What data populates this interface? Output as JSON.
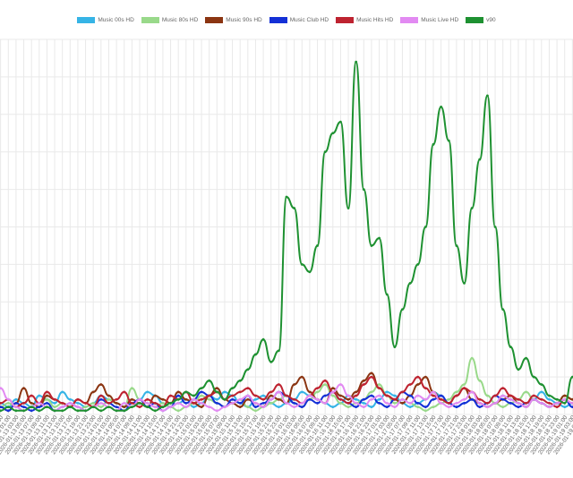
{
  "chart_data": {
    "type": "line",
    "title": "",
    "xlabel": "",
    "ylabel": "",
    "grid": true,
    "legend_position": "top",
    "x": [
      "2026-01-12 21:00",
      "2026-01-12 23:00",
      "2026-01-13 01:00",
      "2026-01-13 03:00",
      "2026-01-13 05:00",
      "2026-01-13 07:00",
      "2026-01-13 09:00",
      "2026-01-13 11:00",
      "2026-01-13 13:00",
      "2026-01-13 15:00",
      "2026-01-13 17:00",
      "2026-01-13 19:00",
      "2026-01-13 21:00",
      "2026-01-13 23:00",
      "2026-01-14 01:00",
      "2026-01-14 03:00",
      "2026-01-14 05:00",
      "2026-01-14 07:00",
      "2026-01-14 09:00",
      "2026-01-14 11:00",
      "2026-01-14 13:00",
      "2026-01-14 15:00",
      "2026-01-14 17:00",
      "2026-01-14 19:00",
      "2026-01-14 21:00",
      "2026-01-14 23:00",
      "2026-01-15 01:00",
      "2026-01-15 03:00",
      "2026-01-15 05:00",
      "2026-01-15 07:00",
      "2026-01-15 09:00",
      "2026-01-15 11:00",
      "2026-01-15 13:00",
      "2026-01-15 15:00",
      "2026-01-15 17:00",
      "2026-01-15 19:00",
      "2026-01-15 21:00",
      "2026-01-15 23:00",
      "2026-01-16 01:00",
      "2026-01-16 03:00",
      "2026-01-16 05:00",
      "2026-01-16 07:00",
      "2026-01-16 09:00",
      "2026-01-16 11:00",
      "2026-01-16 13:00",
      "2026-01-16 15:00",
      "2026-01-16 17:00",
      "2026-01-16 19:00",
      "2026-01-16 21:00",
      "2026-01-16 23:00",
      "2026-01-17 01:00",
      "2026-01-17 03:00",
      "2026-01-17 05:00",
      "2026-01-17 07:00",
      "2026-01-17 09:00",
      "2026-01-17 11:00",
      "2026-01-17 13:00",
      "2026-01-17 15:00",
      "2026-01-17 17:00",
      "2026-01-17 19:00",
      "2026-01-17 21:00",
      "2026-01-17 23:00",
      "2026-01-18 01:00",
      "2026-01-18 03:00",
      "2026-01-18 05:00",
      "2026-01-18 07:00",
      "2026-01-18 09:00",
      "2026-01-18 11:00",
      "2026-01-18 13:00",
      "2026-01-18 15:00",
      "2026-01-18 17:00",
      "2026-01-18 19:00",
      "2026-01-18 21:00",
      "2026-01-18 23:00",
      "2026-01-19 01:00",
      "2026-01-19 03:00",
      "2026-01-19 05:00"
    ],
    "ylim": [
      0,
      100
    ],
    "series": [
      {
        "name": "Music 00s HD",
        "color": "#36b4e6",
        "values": [
          2,
          3,
          2,
          4,
          3,
          2,
          5,
          4,
          3,
          6,
          4,
          3,
          2,
          3,
          5,
          4,
          3,
          2,
          3,
          4,
          6,
          5,
          3,
          2,
          3,
          4,
          2,
          3,
          5,
          4,
          6,
          5,
          3,
          2,
          4,
          5,
          3,
          2,
          3,
          4,
          6,
          5,
          4,
          3,
          2,
          3,
          5,
          4,
          3,
          2,
          4,
          6,
          5,
          3,
          2,
          3,
          4,
          6,
          5,
          3,
          2,
          3,
          4,
          3,
          2,
          3,
          5,
          4,
          3,
          2,
          4,
          6,
          4,
          3,
          2,
          3,
          4
        ]
      },
      {
        "name": "Music 80s HD",
        "color": "#99d98a",
        "values": [
          1,
          2,
          3,
          2,
          1,
          2,
          3,
          4,
          2,
          3,
          2,
          1,
          2,
          3,
          2,
          4,
          3,
          2,
          7,
          4,
          3,
          2,
          3,
          2,
          1,
          2,
          3,
          5,
          4,
          3,
          2,
          3,
          4,
          2,
          1,
          2,
          3,
          4,
          5,
          3,
          2,
          4,
          6,
          8,
          5,
          3,
          2,
          3,
          4,
          6,
          8,
          5,
          3,
          4,
          3,
          2,
          1,
          2,
          3,
          4,
          6,
          8,
          15,
          9,
          5,
          3,
          2,
          3,
          4,
          6,
          4,
          3,
          2,
          3,
          5,
          4,
          2
        ]
      },
      {
        "name": "Music 90s HD",
        "color": "#8b3512",
        "values": [
          4,
          2,
          1,
          3,
          7,
          3,
          2,
          5,
          4,
          3,
          2,
          4,
          3,
          6,
          8,
          5,
          3,
          2,
          4,
          3,
          2,
          5,
          4,
          3,
          6,
          4,
          3,
          2,
          5,
          7,
          4,
          3,
          2,
          4,
          3,
          2,
          5,
          4,
          3,
          8,
          10,
          6,
          4,
          3,
          7,
          5,
          4,
          6,
          9,
          11,
          7,
          5,
          4,
          3,
          5,
          8,
          10,
          6,
          4,
          3,
          5,
          7,
          4,
          3,
          2,
          3,
          4,
          5,
          3,
          2,
          4,
          3,
          2,
          3,
          5,
          4,
          3
        ]
      },
      {
        "name": "Music Club HD",
        "color": "#1430d6",
        "values": [
          1,
          2,
          1,
          3,
          2,
          1,
          2,
          3,
          1,
          2,
          3,
          2,
          1,
          2,
          4,
          3,
          2,
          1,
          3,
          4,
          2,
          3,
          1,
          2,
          5,
          3,
          4,
          6,
          5,
          3,
          2,
          4,
          3,
          5,
          2,
          3,
          4,
          6,
          5,
          3,
          2,
          4,
          3,
          5,
          6,
          4,
          3,
          2,
          4,
          5,
          3,
          2,
          4,
          6,
          5,
          3,
          2,
          4,
          5,
          3,
          2,
          3,
          4,
          2,
          3,
          5,
          4,
          3,
          2,
          3,
          4,
          3,
          2,
          3,
          4,
          2,
          3
        ]
      },
      {
        "name": "Music Hits HD",
        "color": "#be2330",
        "values": [
          2,
          3,
          4,
          2,
          3,
          5,
          3,
          6,
          4,
          3,
          2,
          4,
          3,
          2,
          5,
          3,
          4,
          6,
          3,
          2,
          4,
          3,
          2,
          5,
          4,
          6,
          3,
          4,
          5,
          6,
          4,
          5,
          6,
          7,
          5,
          4,
          6,
          8,
          5,
          4,
          3,
          5,
          7,
          9,
          6,
          4,
          3,
          5,
          8,
          10,
          7,
          5,
          4,
          6,
          8,
          10,
          7,
          5,
          4,
          3,
          5,
          7,
          6,
          4,
          3,
          5,
          7,
          5,
          4,
          3,
          5,
          4,
          3,
          2,
          4,
          3,
          2
        ]
      },
      {
        "name": "Music Live HD",
        "color": "#e28af2",
        "values": [
          3,
          7,
          4,
          2,
          1,
          2,
          3,
          2,
          1,
          2,
          3,
          2,
          1,
          2,
          3,
          2,
          1,
          3,
          2,
          4,
          3,
          2,
          1,
          2,
          3,
          2,
          4,
          3,
          2,
          1,
          2,
          3,
          4,
          5,
          3,
          2,
          4,
          6,
          3,
          2,
          3,
          5,
          4,
          3,
          6,
          8,
          5,
          3,
          2,
          4,
          5,
          3,
          2,
          4,
          3,
          5,
          4,
          6,
          3,
          2,
          3,
          4,
          6,
          3,
          2,
          3,
          5,
          4,
          3,
          2,
          4,
          3,
          2,
          3,
          4,
          3,
          2
        ]
      },
      {
        "name": "v90",
        "color": "#1e9131",
        "values": [
          1,
          1,
          2,
          1,
          1,
          2,
          1,
          2,
          1,
          1,
          2,
          1,
          1,
          2,
          1,
          2,
          1,
          1,
          2,
          3,
          2,
          1,
          2,
          3,
          4,
          6,
          5,
          7,
          9,
          6,
          4,
          7,
          9,
          12,
          16,
          20,
          14,
          17,
          58,
          55,
          40,
          38,
          45,
          70,
          75,
          78,
          55,
          94,
          60,
          45,
          47,
          32,
          18,
          28,
          35,
          40,
          50,
          72,
          82,
          73,
          45,
          35,
          55,
          68,
          85,
          50,
          28,
          18,
          12,
          15,
          10,
          8,
          5,
          4,
          3,
          10,
          12
        ]
      }
    ]
  }
}
